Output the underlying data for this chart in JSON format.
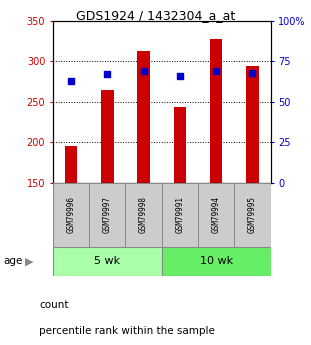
{
  "title": "GDS1924 / 1432304_a_at",
  "samples": [
    "GSM79996",
    "GSM79997",
    "GSM79998",
    "GSM79991",
    "GSM79994",
    "GSM79995"
  ],
  "counts": [
    196,
    265,
    313,
    244,
    328,
    294
  ],
  "percentiles": [
    63,
    67,
    69,
    66,
    69,
    68
  ],
  "groups": [
    {
      "label": "5 wk",
      "indices": [
        0,
        1,
        2
      ]
    },
    {
      "label": "10 wk",
      "indices": [
        3,
        4,
        5
      ]
    }
  ],
  "ylim_left": [
    150,
    350
  ],
  "ylim_right": [
    0,
    100
  ],
  "yticks_left": [
    150,
    200,
    250,
    300,
    350
  ],
  "yticks_right": [
    0,
    25,
    50,
    75,
    100
  ],
  "ytick_labels_right": [
    "0",
    "25",
    "50",
    "75",
    "100%"
  ],
  "bar_color": "#cc0000",
  "dot_color": "#0000cc",
  "bar_bottom": 150,
  "label_bg_color": "#cccccc",
  "group_bg_color_1": "#aaffaa",
  "group_bg_color_2": "#66ee66",
  "legend_count_color": "#cc0000",
  "legend_pct_color": "#0000cc",
  "legend_count_label": "count",
  "legend_pct_label": "percentile rank within the sample",
  "age_label": "age",
  "left_tick_color": "#cc0000",
  "right_tick_color": "#0000cc",
  "bar_width": 0.35
}
